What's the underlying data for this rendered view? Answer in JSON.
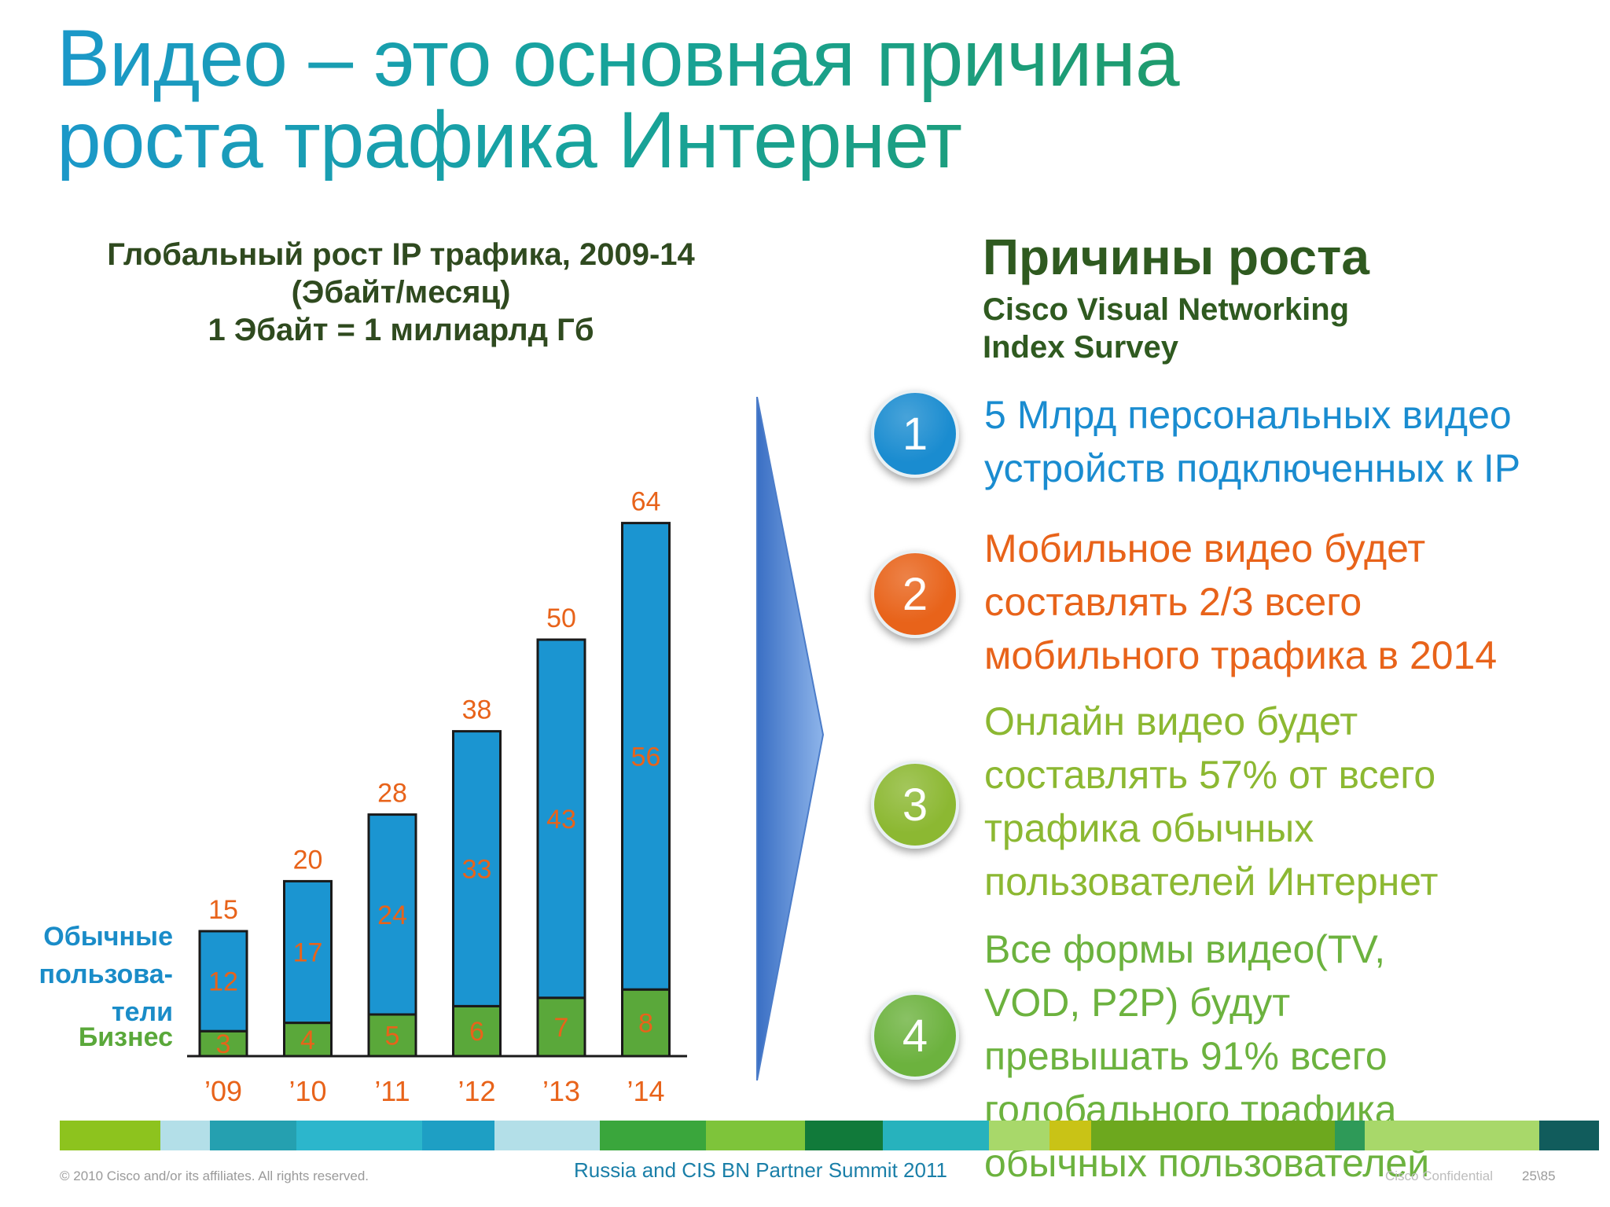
{
  "slide": {
    "title_line1": "Видео – это основная причина",
    "title_line2": "роста трафика Интернет"
  },
  "chart_data": {
    "type": "bar",
    "stacked": true,
    "title": "Глобальный рост IP трафика, 2009-14",
    "subtitle": "(Эбайт/месяц)",
    "note": "1 Эбайт = 1 милиарлд Гб",
    "categories": [
      "’09",
      "’10",
      "’11",
      "’12",
      "’13",
      "’14"
    ],
    "series": [
      {
        "name": "Бизнес",
        "values": [
          3,
          4,
          5,
          6,
          7,
          8
        ],
        "color": "#5aa83a"
      },
      {
        "name": "Обычные пользова-тели",
        "values": [
          12,
          17,
          24,
          33,
          43,
          56
        ],
        "color": "#1b95d1"
      }
    ],
    "totals": [
      15,
      20,
      28,
      38,
      50,
      64
    ],
    "ylim": [
      0,
      64
    ],
    "label_color": "#e8631a",
    "grid": false
  },
  "legend": {
    "consumer_line1": "Обычные",
    "consumer_line2": "пользова-",
    "consumer_line3": "тели",
    "business": "Бизнес"
  },
  "reasons": {
    "heading": "Причины роста",
    "source_line1": "Cisco Visual Networking",
    "source_line2": "Index Survey",
    "items": [
      {
        "number": "1",
        "color": "#1a8cd0",
        "lines": [
          "5 Млрд персональных видео",
          "устройств подключенных к IP"
        ]
      },
      {
        "number": "2",
        "color": "#e8631a",
        "lines": [
          "Мобильное видео будет",
          "составлять 2/3 всего",
          "мобильного трафика в 2014"
        ]
      },
      {
        "number": "3",
        "color": "#8cb832",
        "lines": [
          "Онлайн видео будет",
          "составлять 57% от всего",
          "трафика обычных",
          "пользователей Интернет"
        ]
      },
      {
        "number": "4",
        "color": "#6cb23e",
        "lines": [
          "Все формы видео(TV,",
          "VOD, P2P) будут",
          "превышать 91% всего",
          "голобального трафика",
          "обычных пользователей"
        ]
      }
    ]
  },
  "footer": {
    "copyright": "© 2010 Cisco and/or its affiliates. All rights reserved.",
    "event": "Russia and CIS BN Partner Summit 2011",
    "confidential": "Cisco Confidential",
    "page": "25\\85"
  },
  "strip_colors": [
    "#8dc31e",
    "#b3dfe8",
    "#25a0b0",
    "#2cb6cc",
    "#1e9fc4",
    "#b3dfe8",
    "#3aa63c",
    "#7ec43a",
    "#117a3a",
    "#27b2bd",
    "#a8d86a",
    "#c9c316",
    "#6da81e",
    "#2e9a58",
    "#a8d86a",
    "#115c5c"
  ],
  "colors": {
    "title_gradient": [
      "#1b98c9",
      "#17a39c",
      "#1f9a68"
    ],
    "heading_green": "#2f5a20",
    "arrow_blue": "#5a8ed6"
  }
}
